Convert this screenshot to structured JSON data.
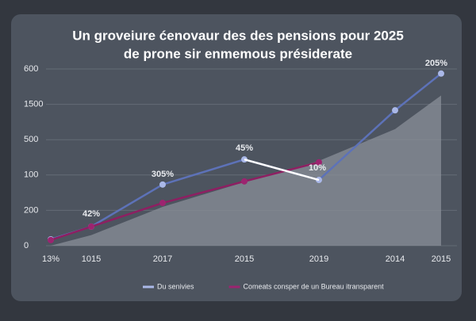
{
  "chart_data": {
    "type": "line",
    "title": [
      "Un groveiure ćenovaur des des pensions pour  2025",
      "de prone sir enmemous présiderate"
    ],
    "categories": [
      "13%",
      "1015",
      "2017",
      "2015",
      "2019",
      "2014",
      "2015"
    ],
    "series": [
      {
        "color": "#8a8f98",
        "fill": true,
        "values": [
          0,
          0.3,
          1.1,
          1.8,
          2.4,
          3.3,
          4.25
        ]
      },
      {
        "name": "Du senivies",
        "color": "#5d72b8",
        "point_color": "#aab8e8",
        "values": [
          0.18,
          0.54,
          1.73,
          2.44,
          1.86,
          3.83,
          4.87
        ]
      },
      {
        "name": "Comeats consper de un Bureau itransparent",
        "color": "#8e1f62",
        "point_color": "#9c2470",
        "values": [
          0.16,
          0.54,
          1.21,
          1.82,
          2.36,
          null,
          null
        ]
      }
    ],
    "annotations": [
      "42%",
      "305%",
      "45%",
      "10%",
      "205%"
    ],
    "ylim": [
      0,
      5
    ],
    "yticks": [
      0,
      {
        "value": 1,
        "label": "200"
      },
      {
        "value": 2,
        "label": "100"
      },
      {
        "value": 3,
        "label": "500"
      },
      {
        "value": 4,
        "label": "1500"
      },
      {
        "value": 5,
        "label": "600"
      }
    ],
    "grid": true
  }
}
